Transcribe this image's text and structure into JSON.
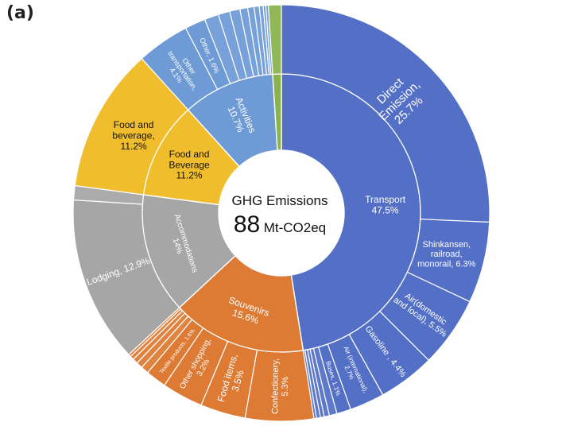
{
  "panel_label": "(a)",
  "center": {
    "title": "GHG Emissions",
    "value": "88",
    "unit": "Mt-CO2eq"
  },
  "colors": {
    "Transport": "#5470c6",
    "Souvenirs": "#dd7b35",
    "Accommodations": "#a6a6a6",
    "Food and Beverage": "#f0bd2d",
    "Activities": "#6e9bd6",
    "Other": "#8ab34d"
  },
  "chart_data": {
    "type": "sunburst",
    "total": 88,
    "unit": "Mt-CO2eq",
    "inner": [
      {
        "name": "Transport",
        "label": "Transport\n47.5%",
        "value": 47.5
      },
      {
        "name": "Souvenirs",
        "label": "Souvenirs\n15.6%",
        "value": 15.6
      },
      {
        "name": "Accommodations",
        "label": "Accommodations\n14%",
        "value": 14.0
      },
      {
        "name": "Food and Beverage",
        "label": "Food and\nBeverage\n11.2%",
        "value": 11.2
      },
      {
        "name": "Activities",
        "label": "Activities\n10.7%",
        "value": 10.7
      },
      {
        "name": "Other",
        "label": "",
        "value": 1.0
      }
    ],
    "outer": [
      {
        "parent": "Transport",
        "label": "Direct\nEmission,\n25.7%",
        "value": 25.7
      },
      {
        "parent": "Transport",
        "label": "Shinkansen,\nrailroad,\nmonorail, 6.3%",
        "value": 6.3
      },
      {
        "parent": "Transport",
        "label": "Air(domestic\nand local), 5.5%",
        "value": 5.5
      },
      {
        "parent": "Transport",
        "label": "Gasoline , 4.4%",
        "value": 4.4
      },
      {
        "parent": "Transport",
        "label": "Air (international),\n2.7%",
        "value": 2.7
      },
      {
        "parent": "Transport",
        "label": "Buses, 1.1%",
        "value": 1.1
      },
      {
        "parent": "Transport",
        "label": "",
        "value": 0.6
      },
      {
        "parent": "Transport",
        "label": "",
        "value": 0.4
      },
      {
        "parent": "Transport",
        "label": "",
        "value": 0.3
      },
      {
        "parent": "Transport",
        "label": "",
        "value": 0.3
      },
      {
        "parent": "Transport",
        "label": "",
        "value": 0.2
      },
      {
        "parent": "Souvenirs",
        "label": "Confectionery,\n5.3%",
        "value": 5.3
      },
      {
        "parent": "Souvenirs",
        "label": "Food items,\n3.5%",
        "value": 3.5
      },
      {
        "parent": "Souvenirs",
        "label": "Other shopping,\n3.2%",
        "value": 3.2
      },
      {
        "parent": "Souvenirs",
        "label": "Textile products, 1.6%",
        "value": 1.6
      },
      {
        "parent": "Souvenirs",
        "label": "",
        "value": 0.6
      },
      {
        "parent": "Souvenirs",
        "label": "",
        "value": 0.5
      },
      {
        "parent": "Souvenirs",
        "label": "",
        "value": 0.4
      },
      {
        "parent": "Souvenirs",
        "label": "",
        "value": 0.3
      },
      {
        "parent": "Souvenirs",
        "label": "",
        "value": 0.2
      },
      {
        "parent": "Accommodations",
        "label": "Lodging, 12.9%",
        "value": 12.9
      },
      {
        "parent": "Accommodations",
        "label": "",
        "value": 1.1
      },
      {
        "parent": "Food and Beverage",
        "label": "Food and\nbeverage,\n11.2%",
        "value": 11.2
      },
      {
        "parent": "Activities",
        "label": "Other\ntransportation,\n4.1%",
        "value": 4.1
      },
      {
        "parent": "Activities",
        "label": "Other, 1.6%",
        "value": 1.6
      },
      {
        "parent": "Activities",
        "label": "",
        "value": 1.1
      },
      {
        "parent": "Activities",
        "label": "",
        "value": 0.9
      },
      {
        "parent": "Activities",
        "label": "",
        "value": 0.8
      },
      {
        "parent": "Activities",
        "label": "",
        "value": 0.6
      },
      {
        "parent": "Activities",
        "label": "",
        "value": 0.5
      },
      {
        "parent": "Activities",
        "label": "",
        "value": 0.4
      },
      {
        "parent": "Activities",
        "label": "",
        "value": 0.3
      },
      {
        "parent": "Activities",
        "label": "",
        "value": 0.2
      },
      {
        "parent": "Activities",
        "label": "",
        "value": 0.2
      },
      {
        "parent": "Other",
        "label": "",
        "value": 1.0
      }
    ]
  }
}
